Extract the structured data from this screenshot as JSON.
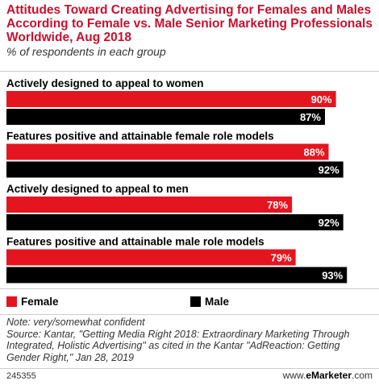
{
  "title": "Attitudes Toward Creating Advertising for Females and Males According to Female vs. Male Senior Marketing Professionals Worldwide, Aug 2018",
  "subtitle": "% of respondents in each group",
  "legend": {
    "female": "Female",
    "male": "Male"
  },
  "notes": {
    "note": "Note: very/somewhat confident",
    "source": "Source: Kantar, \"Getting Media Right 2018: Extraordinary Marketing Through Integrated, Holistic Advertising\" as cited in the Kantar \"AdReaction: Getting Gender Right,\" Jan 28, 2019"
  },
  "footer": {
    "chart_id": "245355",
    "brand_prefix": "www.",
    "brand_name": "eMarketer",
    "brand_suffix": ".com"
  },
  "colors": {
    "female": "#e4151f",
    "male": "#000000",
    "title": "#c8102e"
  },
  "chart_data": {
    "type": "bar",
    "orientation": "horizontal",
    "categories": [
      "Actively designed to appeal to women",
      "Features positive and attainable female role models",
      "Actively designed to appeal to men",
      "Features positive and attainable male role models"
    ],
    "series": [
      {
        "name": "Female",
        "values": [
          90,
          88,
          78,
          79
        ],
        "labels": [
          "90%",
          "88%",
          "78%",
          "79%"
        ]
      },
      {
        "name": "Male",
        "values": [
          87,
          92,
          92,
          93
        ],
        "labels": [
          "87%",
          "92%",
          "92%",
          "93%"
        ]
      }
    ],
    "xlim": [
      0,
      100
    ],
    "grid": false,
    "legend_position": "bottom-left"
  }
}
